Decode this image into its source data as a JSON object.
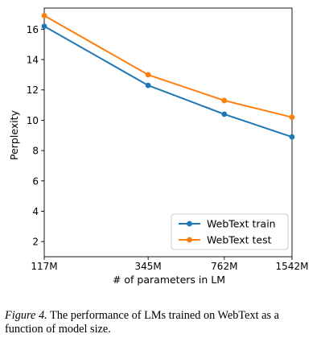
{
  "chart_data": {
    "type": "line",
    "categories": [
      "117M",
      "345M",
      "762M",
      "1542M"
    ],
    "x": [
      117,
      345,
      762,
      1542
    ],
    "xscale": "log",
    "xlabel": "# of parameters in LM",
    "ylabel": "Perplexity",
    "ylim": [
      1.0,
      17.4
    ],
    "yticks": [
      2,
      4,
      6,
      8,
      10,
      12,
      14,
      16
    ],
    "grid": false,
    "legend_position": "lower right",
    "series": [
      {
        "name": "WebText train",
        "color": "#1f77b4",
        "values": [
          16.2,
          12.3,
          10.4,
          8.9
        ]
      },
      {
        "name": "WebText test",
        "color": "#ff7f0e",
        "values": [
          16.9,
          13.0,
          11.3,
          10.2
        ]
      }
    ]
  },
  "caption": {
    "label": "Figure 4.",
    "text": " The performance of LMs trained on WebText as a function of model size."
  }
}
